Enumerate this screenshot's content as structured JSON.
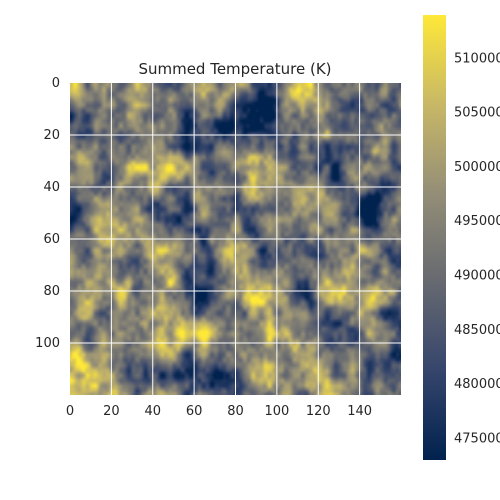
{
  "chart_data": {
    "type": "heatmap",
    "title": "Summed Temperature (K)",
    "xlabel": "",
    "ylabel": "",
    "grid": true,
    "colormap": "cividis",
    "colormap_stops": [
      "#00224e",
      "#35456c",
      "#666970",
      "#948e77",
      "#c8b866",
      "#fee838"
    ],
    "x_range": [
      0,
      159
    ],
    "y_range": [
      0,
      119
    ],
    "x_ticks": [
      0,
      20,
      40,
      60,
      80,
      100,
      120,
      140
    ],
    "y_ticks": [
      0,
      20,
      40,
      60,
      80,
      100
    ],
    "colorbar": {
      "range": [
        473000,
        514000
      ],
      "ticks": [
        475000,
        480000,
        485000,
        490000,
        495000,
        500000,
        505000,
        510000
      ],
      "tick_labels": [
        "475000",
        "480000",
        "485000",
        "490000",
        "495000",
        "500000",
        "505000",
        "510000"
      ]
    },
    "hotspots": [
      {
        "x": 121,
        "y": 46,
        "r": 9,
        "value": 511000
      },
      {
        "x": 104,
        "y": 62,
        "r": 7,
        "value": 512000
      },
      {
        "x": 88,
        "y": 84,
        "r": 6,
        "value": 509000
      },
      {
        "x": 75,
        "y": 81,
        "r": 5,
        "value": 507000
      },
      {
        "x": 96,
        "y": 88,
        "r": 4,
        "value": 506000
      },
      {
        "x": 108,
        "y": 75,
        "r": 5,
        "value": 505000
      },
      {
        "x": 68,
        "y": 85,
        "r": 4,
        "value": 503000
      },
      {
        "x": 83,
        "y": 29,
        "r": 3,
        "value": 507000
      },
      {
        "x": 124,
        "y": 19,
        "r": 2,
        "value": 508000
      },
      {
        "x": 147,
        "y": 26,
        "r": 2,
        "value": 508000
      },
      {
        "x": 145,
        "y": 83,
        "r": 3,
        "value": 506000
      },
      {
        "x": 136,
        "y": 88,
        "r": 3,
        "value": 505000
      },
      {
        "x": 48,
        "y": 77,
        "r": 3,
        "value": 504000
      },
      {
        "x": 14,
        "y": 98,
        "r": 3,
        "value": 506000
      },
      {
        "x": 3,
        "y": 104,
        "r": 3,
        "value": 507000
      },
      {
        "x": 12,
        "y": 64,
        "r": 2,
        "value": 503000
      },
      {
        "x": 28,
        "y": 76,
        "r": 2,
        "value": 502000
      },
      {
        "x": 109,
        "y": 102,
        "r": 3,
        "value": 503000
      },
      {
        "x": 132,
        "y": 72,
        "r": 2,
        "value": 502000
      },
      {
        "x": 60,
        "y": 30,
        "r": 2,
        "value": 500000
      },
      {
        "x": 78,
        "y": 96,
        "r": 3,
        "value": 502000
      },
      {
        "x": 117,
        "y": 57,
        "r": 5,
        "value": 504000
      }
    ],
    "coldspots": [
      {
        "x": 70,
        "y": 112,
        "r": 8,
        "value": 474000
      },
      {
        "x": 148,
        "y": 50,
        "r": 8,
        "value": 474000
      },
      {
        "x": 15,
        "y": 35,
        "r": 9,
        "value": 476000
      },
      {
        "x": 95,
        "y": 5,
        "r": 7,
        "value": 477000
      },
      {
        "x": 150,
        "y": 105,
        "r": 8,
        "value": 476000
      },
      {
        "x": 55,
        "y": 55,
        "r": 7,
        "value": 479000
      },
      {
        "x": 25,
        "y": 110,
        "r": 6,
        "value": 477000
      },
      {
        "x": 130,
        "y": 110,
        "r": 6,
        "value": 478000
      },
      {
        "x": 40,
        "y": 10,
        "r": 6,
        "value": 480000
      },
      {
        "x": 60,
        "y": 100,
        "r": 5,
        "value": 478000
      },
      {
        "x": 155,
        "y": 10,
        "r": 5,
        "value": 479000
      }
    ]
  }
}
